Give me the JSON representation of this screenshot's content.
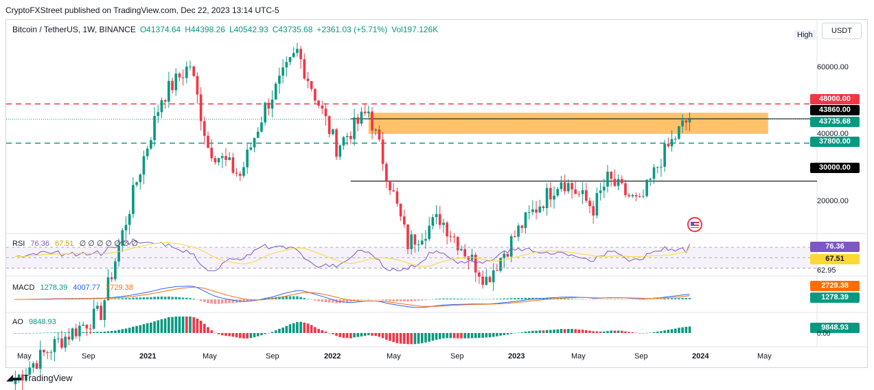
{
  "publisher": "CryptoFXStreet published on TradingView.com, Dec 22, 2023 13:14 UTC-5",
  "legend": {
    "symbol": "Bitcoin / TetherUS, 1W, BINANCE",
    "open": "O41374.64",
    "high": "H44398.26",
    "low": "L40542.93",
    "close": "C43735.68",
    "change": "+2361.03 (+5.71%)",
    "volume": "Vol197.126K"
  },
  "toolbar": {
    "currency": "USDT",
    "high_label": "High"
  },
  "price_axis": {
    "ticks": [
      {
        "value": 60000,
        "label": "60000.00"
      },
      {
        "value": 40000,
        "label": "40000.00"
      },
      {
        "value": 20000,
        "label": "20000.00"
      }
    ]
  },
  "price_tags": {
    "resistance": {
      "label": "48000.00",
      "value": 48000,
      "color": "#f23645"
    },
    "zone_top": {
      "label": "43860.00",
      "value": 43860,
      "color": "#000000"
    },
    "last": {
      "label": "43735.68",
      "value": 43735.68,
      "color": "#089981"
    },
    "support": {
      "label": "37800.00",
      "value": 37800,
      "color": "#089981"
    },
    "level": {
      "label": "30000.00",
      "value": 30000,
      "color": "#000000"
    }
  },
  "rsi": {
    "name": "RSI",
    "value": "76.36",
    "ma": "67.51",
    "placeholders": "∅ ∅ ∅ ∅ ∅ ∅ ∅",
    "tags": {
      "rsi": "76.36",
      "ma": "67.51",
      "level": "62.95"
    }
  },
  "macd": {
    "name": "MACD",
    "hist": "1278.39",
    "macd": "4007.77",
    "signal": "2729.38",
    "tags": {
      "signal": "2729.38",
      "hist": "1278.39"
    }
  },
  "ao": {
    "name": "AO",
    "value": "9848.93",
    "tag": "9848.93",
    "zero": "0.00"
  },
  "x_axis": [
    "May",
    "Sep",
    "2021",
    "May",
    "Sep",
    "2022",
    "May",
    "Sep",
    "2023",
    "May",
    "Sep",
    "2024",
    "May"
  ],
  "footer": {
    "brand": "TradingView",
    "icon": "tradingview-logo-icon"
  },
  "colors": {
    "up": "#089981",
    "down": "#f23645",
    "zone": "#ffb74d",
    "rsi_line": "#7e57c2",
    "rsi_ma": "#fdd835",
    "macd_line": "#2962ff",
    "signal_line": "#ff6d00"
  },
  "chart_data": {
    "type": "candlestick",
    "interval": "1W",
    "x_range": [
      "2020-04-20",
      "2024-07-01"
    ],
    "y_scale": "log",
    "ylim": [
      11000,
      90000
    ],
    "levels": [
      {
        "label": "48000.00",
        "value": 48000,
        "style": "dashed",
        "color": "#f23645"
      },
      {
        "label": "37800.00",
        "value": 37800,
        "style": "dashed",
        "color": "#089981"
      },
      {
        "label": "30000.00",
        "value": 30000,
        "style": "solid",
        "color": "#000000"
      }
    ],
    "zone": {
      "from": 40000,
      "to": 45500,
      "start": "2022-03-28",
      "end": "2024-05-20",
      "color": "#ffb74d"
    },
    "anchor_points": [
      [
        "2020-05-04",
        9000
      ],
      [
        "2020-07-27",
        11300
      ],
      [
        "2020-10-19",
        13500
      ],
      [
        "2020-12-28",
        30000
      ],
      [
        "2021-02-15",
        50000
      ],
      [
        "2021-04-12",
        61000
      ],
      [
        "2021-05-17",
        37000
      ],
      [
        "2021-07-19",
        31000
      ],
      [
        "2021-09-06",
        47000
      ],
      [
        "2021-11-08",
        66000
      ],
      [
        "2022-01-24",
        37000
      ],
      [
        "2022-03-28",
        46000
      ],
      [
        "2022-06-13",
        20500
      ],
      [
        "2022-08-15",
        24000
      ],
      [
        "2022-11-14",
        16500
      ],
      [
        "2023-01-23",
        23000
      ],
      [
        "2023-04-10",
        30500
      ],
      [
        "2023-06-12",
        25500
      ],
      [
        "2023-07-10",
        30300
      ],
      [
        "2023-09-11",
        26000
      ],
      [
        "2023-10-23",
        34500
      ],
      [
        "2023-12-04",
        42000
      ],
      [
        "2023-12-18",
        43735.68
      ]
    ]
  }
}
